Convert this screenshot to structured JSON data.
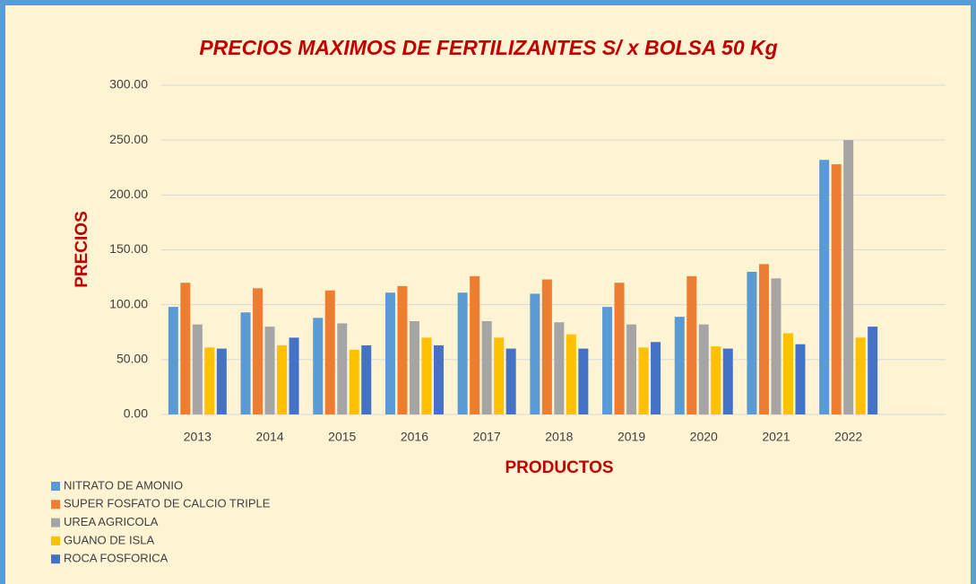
{
  "chart_data": {
    "type": "bar",
    "title": "PRECIOS MAXIMOS DE  FERTILIZANTES S/ x BOLSA 50 Kg",
    "x_label": "PRODUCTOS",
    "y_label": "PRECIOS",
    "categories": [
      "2013",
      "2014",
      "2015",
      "2016",
      "2017",
      "2018",
      "2019",
      "2020",
      "2021",
      "2022"
    ],
    "series": [
      {
        "name": "NITRATO DE AMONIO",
        "color": "#5b9bd5",
        "values": [
          98,
          93,
          88,
          111,
          111,
          110,
          98,
          89,
          130,
          232
        ]
      },
      {
        "name": "SUPER FOSFATO DE CALCIO TRIPLE",
        "color": "#ed7d31",
        "values": [
          120,
          115,
          113,
          117,
          126,
          123,
          120,
          126,
          137,
          228
        ]
      },
      {
        "name": "UREA AGRICOLA",
        "color": "#a5a5a5",
        "values": [
          82,
          80,
          83,
          85,
          85,
          84,
          82,
          82,
          124,
          250
        ]
      },
      {
        "name": "GUANO DE ISLA",
        "color": "#ffc000",
        "values": [
          61,
          63,
          59,
          70,
          70,
          73,
          61,
          62,
          74,
          70
        ]
      },
      {
        "name": "ROCA FOSFORICA",
        "color": "#4472c4",
        "values": [
          60,
          70,
          63,
          63,
          60,
          60,
          66,
          60,
          64,
          80
        ]
      }
    ],
    "ylim": [
      0,
      300
    ],
    "yticks": [
      {
        "value": 0,
        "label": "0.00"
      },
      {
        "value": 50,
        "label": "50.00"
      },
      {
        "value": 100,
        "label": "100.00"
      },
      {
        "value": 150,
        "label": "150.00"
      },
      {
        "value": 200,
        "label": "200.00"
      },
      {
        "value": 250,
        "label": "250.00"
      },
      {
        "value": 300,
        "label": "300.00"
      }
    ],
    "grid": true,
    "legend": "bottom-left"
  }
}
